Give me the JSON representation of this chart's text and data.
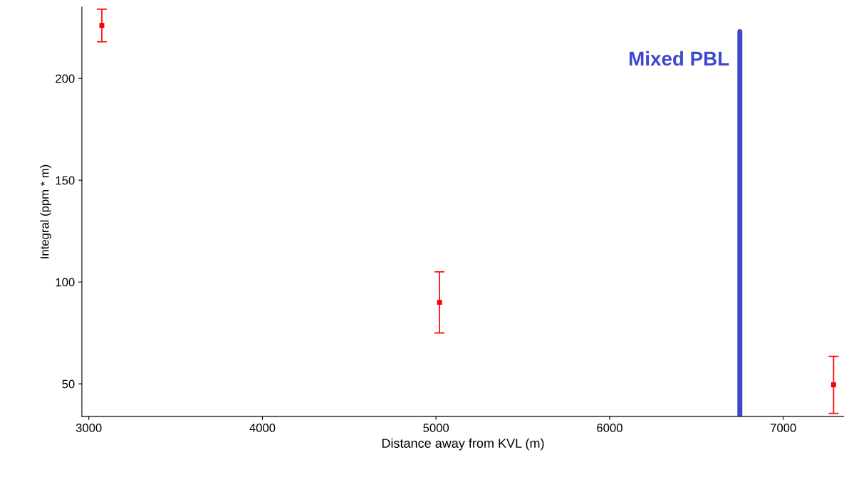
{
  "chart_data": {
    "type": "scatter",
    "xlabel": "Distance away from KVL (m)",
    "ylabel": "Integral (ppm * m)",
    "x": [
      3075,
      5020,
      7290
    ],
    "series": [
      {
        "color": "#ff0000",
        "values": [
          226,
          90,
          49.5
        ],
        "errors": [
          8,
          15,
          14
        ]
      }
    ],
    "marker": "square",
    "grid": false,
    "legend": false,
    "xlim": [
      2960,
      7350
    ],
    "xticks": [
      3000,
      4000,
      5000,
      6000,
      7000
    ],
    "ylim": [
      34,
      235
    ],
    "yticks": [
      50,
      100,
      150,
      200
    ],
    "ref_lines": [
      {
        "axis": "x",
        "value": 6750,
        "label": "Mixed PBL",
        "color": "#3f48cc"
      }
    ]
  }
}
